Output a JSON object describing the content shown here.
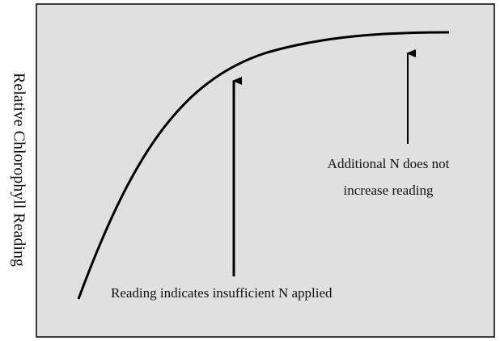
{
  "y_axis_label": "Relative Chlorophyll Reading",
  "annotations": [
    {
      "lines": [
        "Reading indicates insufficient N applied"
      ]
    },
    {
      "lines": [
        "Additional N does not",
        "increase reading"
      ]
    }
  ]
}
